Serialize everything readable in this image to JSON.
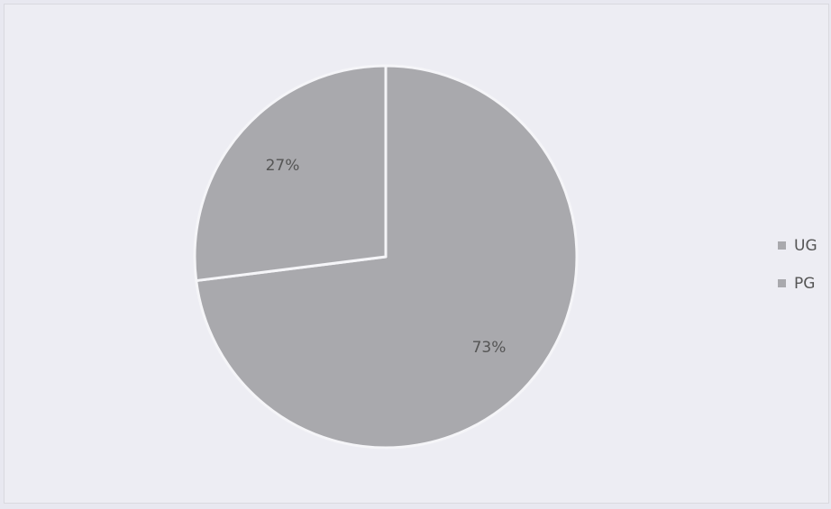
{
  "chart_data": {
    "type": "pie",
    "series": [
      {
        "label": "UG",
        "value": 73,
        "display": "73%",
        "color": "#a9a9ad"
      },
      {
        "label": "PG",
        "value": 27,
        "display": "27%",
        "color": "#a9a9ad"
      }
    ],
    "legend_position": "right",
    "slice_border_color": "#f5f5f8",
    "label_color": "#555555"
  }
}
